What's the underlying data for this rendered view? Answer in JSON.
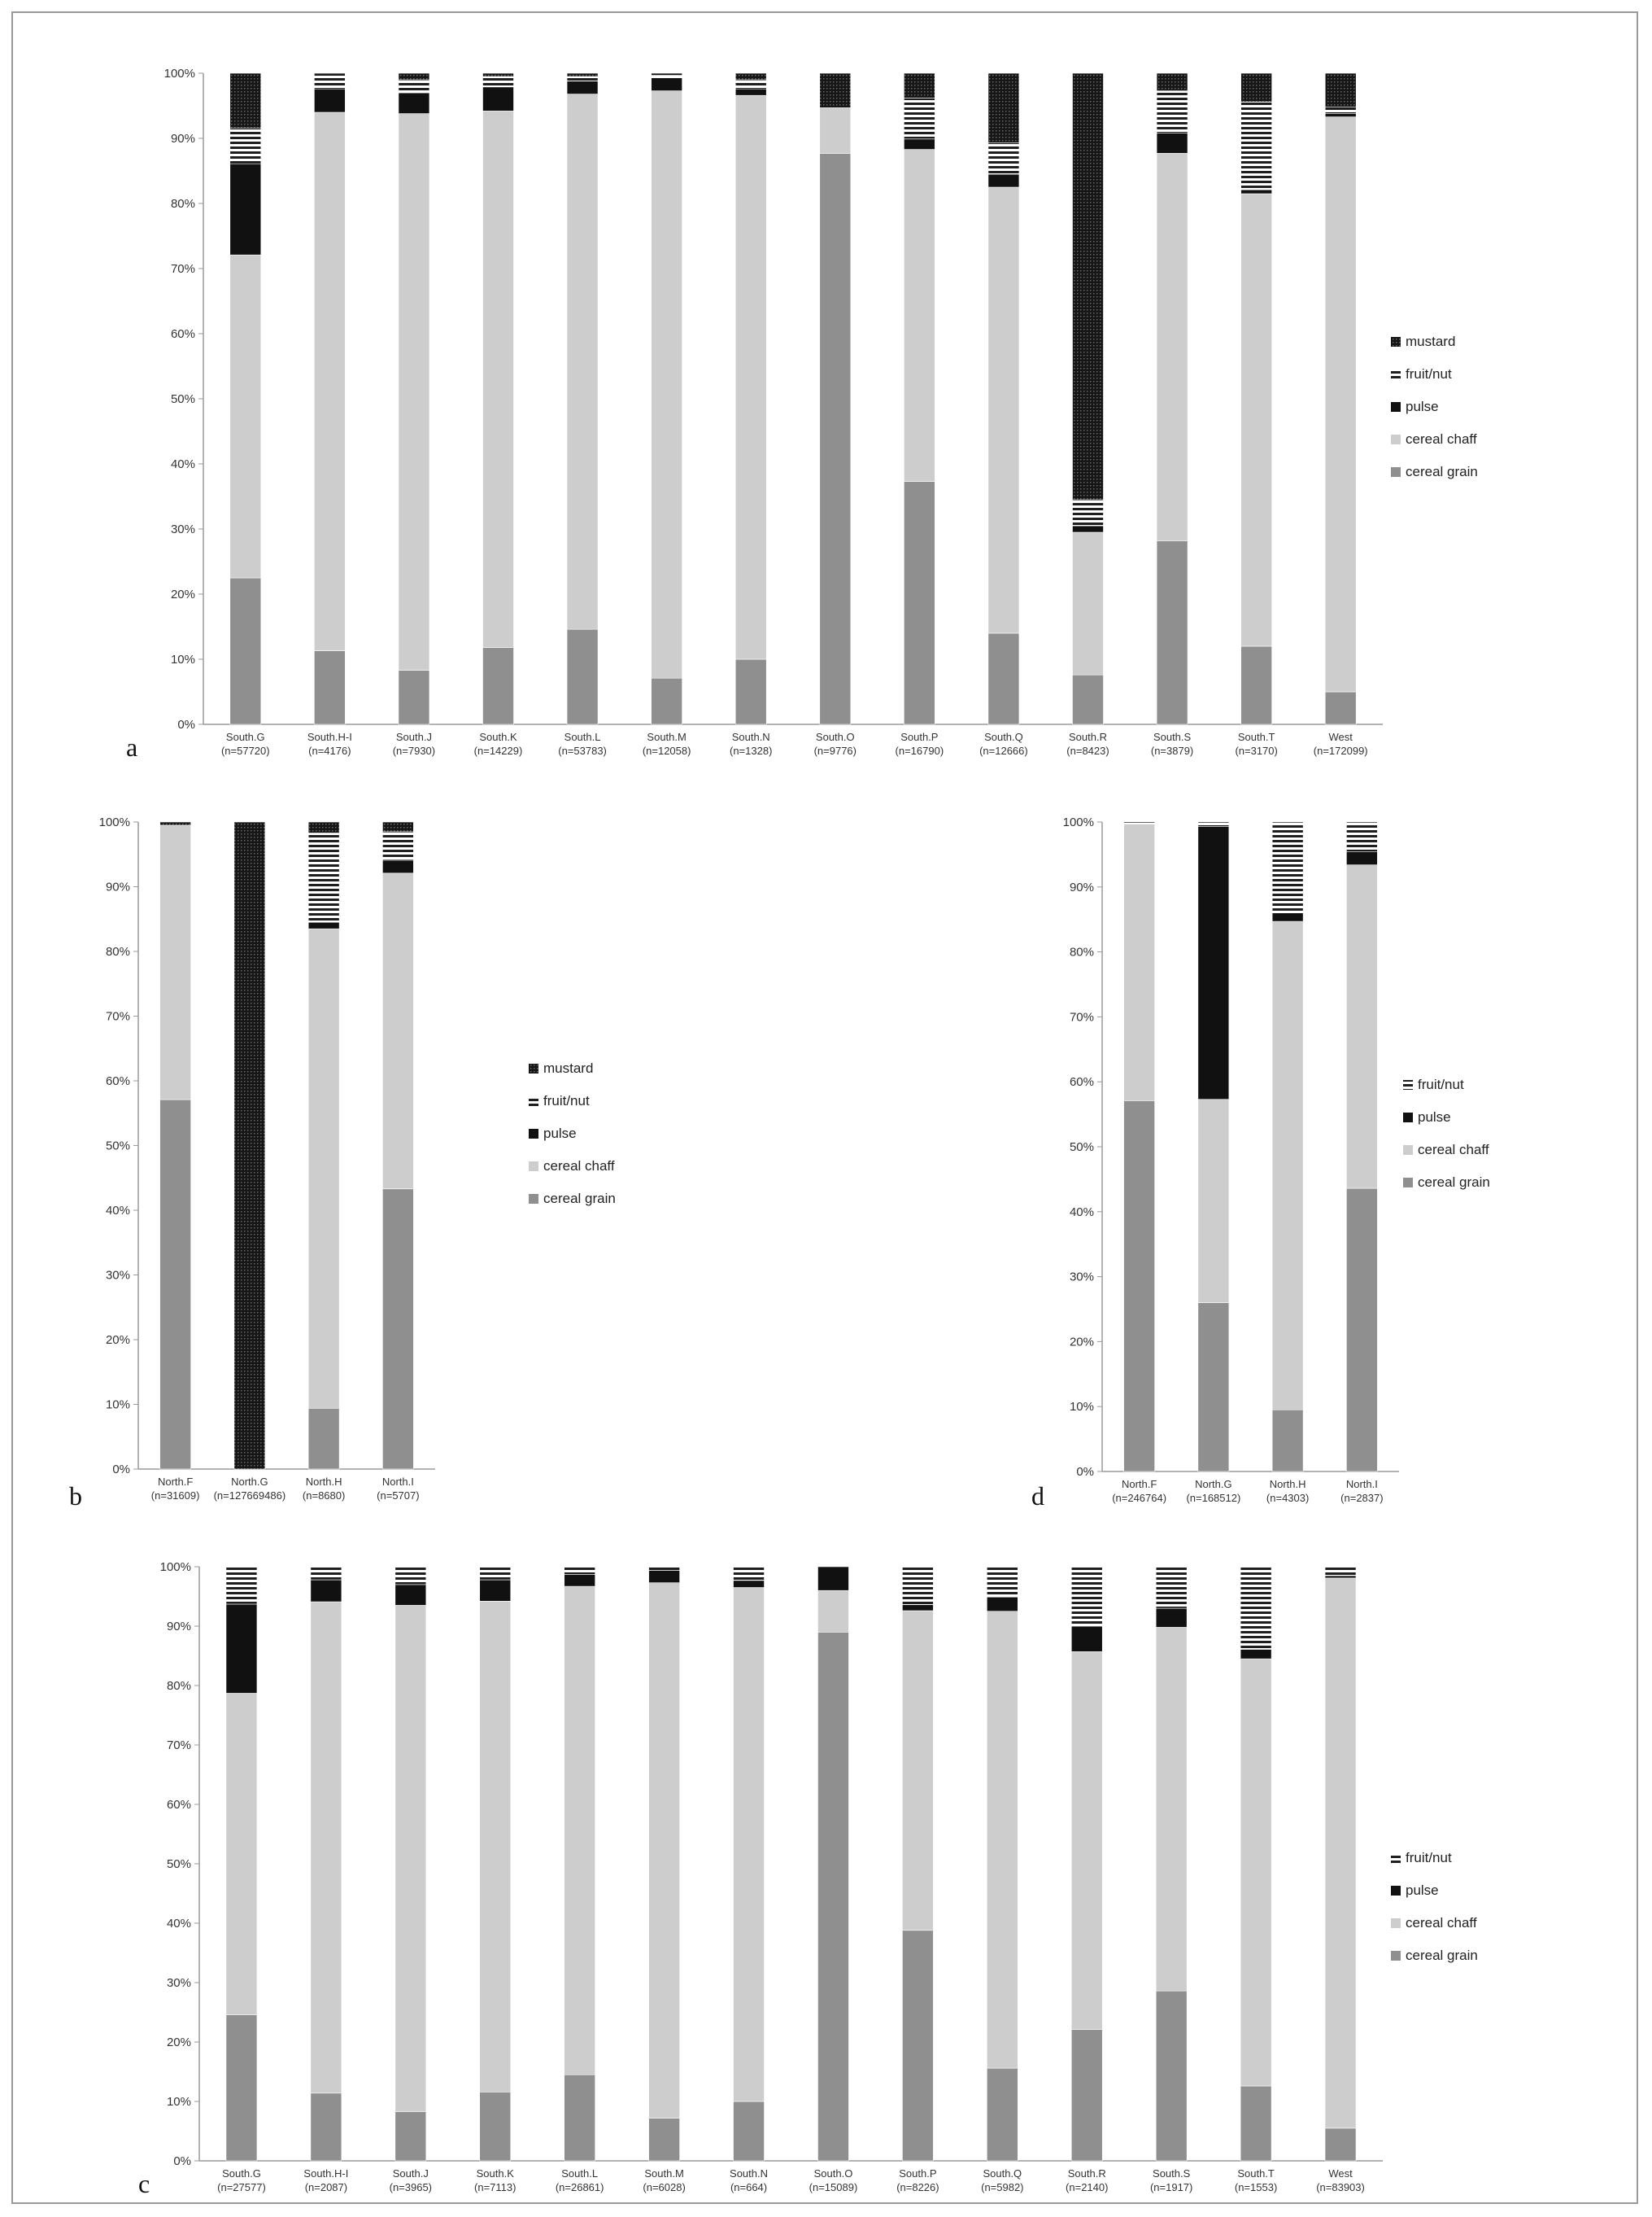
{
  "colors": {
    "cereal grain": "#8f8f8f",
    "cereal chaff": "#cdcdcd",
    "pulse": "#111111",
    "fruit/nut": "#bdbdbd",
    "mustard": "#2a2a2a",
    "axis": "#9a9a9a"
  },
  "panel_letters": {
    "a": "a",
    "b": "b",
    "c": "c",
    "d": "d"
  },
  "chart_data": [
    {
      "panel": "a",
      "type": "bar",
      "stacked": true,
      "percent": true,
      "ylim": [
        0,
        100
      ],
      "yticks": [
        "0%",
        "10%",
        "20%",
        "30%",
        "40%",
        "50%",
        "60%",
        "70%",
        "80%",
        "90%",
        "100%"
      ],
      "categories": [
        "South.G",
        "South.H-I",
        "South.J",
        "South.K",
        "South.L",
        "South.M",
        "South.N",
        "South.O",
        "South.P",
        "South.Q",
        "South.R",
        "South.S",
        "South.T",
        "West"
      ],
      "sample_sizes": [
        "(n=57720)",
        "(n=4176)",
        "(n=7930)",
        "(n=14229)",
        "(n=53783)",
        "(n=12058)",
        "(n=1328)",
        "(n=9776)",
        "(n=16790)",
        "(n=12666)",
        "(n=8423)",
        "(n=3879)",
        "(n=3170)",
        "(n=172099)"
      ],
      "legend": [
        "mustard",
        "fruit/nut",
        "pulse",
        "cereal chaff",
        "cereal grain"
      ],
      "series": [
        {
          "name": "cereal grain",
          "values": [
            22.5,
            11.3,
            8.3,
            11.8,
            14.6,
            7.1,
            10.0,
            87.7,
            37.3,
            14.0,
            7.6,
            28.2,
            12.0,
            5.0
          ]
        },
        {
          "name": "cereal chaff",
          "values": [
            49.6,
            82.7,
            85.5,
            82.4,
            82.2,
            90.2,
            86.6,
            7.0,
            51.0,
            68.5,
            21.9,
            59.5,
            69.5,
            88.3
          ]
        },
        {
          "name": "pulse",
          "values": [
            14.0,
            3.6,
            3.2,
            3.7,
            2.0,
            2.0,
            1.0,
            0.0,
            1.6,
            2.0,
            1.0,
            3.1,
            0.6,
            0.5
          ]
        },
        {
          "name": "fruit/nut",
          "values": [
            5.5,
            2.4,
            2.0,
            1.6,
            0.7,
            0.4,
            1.4,
            0.0,
            6.3,
            4.8,
            4.0,
            6.5,
            13.5,
            1.0
          ]
        },
        {
          "name": "mustard",
          "values": [
            8.4,
            0.0,
            1.0,
            0.5,
            0.5,
            0.3,
            1.0,
            5.3,
            3.8,
            10.7,
            65.5,
            2.7,
            4.4,
            5.2
          ]
        }
      ]
    },
    {
      "panel": "b",
      "type": "bar",
      "stacked": true,
      "percent": true,
      "ylim": [
        0,
        100
      ],
      "yticks": [
        "0%",
        "10%",
        "20%",
        "30%",
        "40%",
        "50%",
        "60%",
        "70%",
        "80%",
        "90%",
        "100%"
      ],
      "categories": [
        "North.F",
        "North.G",
        "North.H",
        "North.I"
      ],
      "sample_sizes": [
        "(n=31609)",
        "(n=127669486)",
        "(n=8680)",
        "(n=5707)"
      ],
      "legend": [
        "mustard",
        "fruit/nut",
        "pulse",
        "cereal chaff",
        "cereal grain"
      ],
      "series": [
        {
          "name": "cereal grain",
          "values": [
            57.1,
            0.0,
            9.4,
            43.3
          ]
        },
        {
          "name": "cereal chaff",
          "values": [
            42.4,
            0.0,
            74.1,
            48.8
          ]
        },
        {
          "name": "pulse",
          "values": [
            0.0,
            0.0,
            1.0,
            2.0
          ]
        },
        {
          "name": "fruit/nut",
          "values": [
            0.0,
            0.0,
            13.8,
            4.4
          ]
        },
        {
          "name": "mustard",
          "values": [
            0.5,
            100.0,
            1.7,
            1.5
          ]
        }
      ]
    },
    {
      "panel": "d",
      "type": "bar",
      "stacked": true,
      "percent": true,
      "ylim": [
        0,
        100
      ],
      "yticks": [
        "0%",
        "10%",
        "20%",
        "30%",
        "40%",
        "50%",
        "60%",
        "70%",
        "80%",
        "90%",
        "100%"
      ],
      "categories": [
        "North.F",
        "North.G",
        "North.H",
        "North.I"
      ],
      "sample_sizes": [
        "(n=246764)",
        "(n=168512)",
        "(n=4303)",
        "(n=2837)"
      ],
      "legend": [
        "fruit/nut",
        "pulse",
        "cereal chaff",
        "cereal grain"
      ],
      "series": [
        {
          "name": "cereal grain",
          "values": [
            57.1,
            26.0,
            9.5,
            43.6
          ]
        },
        {
          "name": "cereal chaff",
          "values": [
            42.6,
            31.3,
            75.2,
            49.8
          ]
        },
        {
          "name": "pulse",
          "values": [
            0.0,
            42.0,
            1.3,
            2.0
          ]
        },
        {
          "name": "fruit/nut",
          "values": [
            0.3,
            0.7,
            14.0,
            4.6
          ]
        }
      ]
    },
    {
      "panel": "c",
      "type": "bar",
      "stacked": true,
      "percent": true,
      "ylim": [
        0,
        100
      ],
      "yticks": [
        "0%",
        "10%",
        "20%",
        "30%",
        "40%",
        "50%",
        "60%",
        "70%",
        "80%",
        "90%",
        "100%"
      ],
      "categories": [
        "South.G",
        "South.H-I",
        "South.J",
        "South.K",
        "South.L",
        "South.M",
        "South.N",
        "South.O",
        "South.P",
        "South.Q",
        "South.R",
        "South.S",
        "South.T",
        "West"
      ],
      "sample_sizes": [
        "(n=27577)",
        "(n=2087)",
        "(n=3965)",
        "(n=7113)",
        "(n=26861)",
        "(n=6028)",
        "(n=664)",
        "(n=15089)",
        "(n=8226)",
        "(n=5982)",
        "(n=2140)",
        "(n=1917)",
        "(n=1553)",
        "(n=83903)"
      ],
      "legend": [
        "fruit/nut",
        "pulse",
        "cereal chaff",
        "cereal grain"
      ],
      "series": [
        {
          "name": "cereal grain",
          "values": [
            24.6,
            11.4,
            8.3,
            11.6,
            14.5,
            7.2,
            10.0,
            89.0,
            38.8,
            15.6,
            22.1,
            28.6,
            12.6,
            5.5
          ]
        },
        {
          "name": "cereal chaff",
          "values": [
            54.1,
            82.7,
            85.2,
            82.6,
            82.2,
            90.1,
            86.5,
            7.0,
            53.8,
            76.9,
            63.6,
            61.2,
            71.9,
            92.6
          ]
        },
        {
          "name": "pulse",
          "values": [
            15.0,
            3.7,
            3.5,
            3.6,
            2.0,
            2.1,
            1.2,
            4.0,
            1.0,
            2.4,
            4.3,
            3.2,
            1.6,
            0.4
          ]
        },
        {
          "name": "fruit/nut",
          "values": [
            6.3,
            2.2,
            3.0,
            2.2,
            1.3,
            0.6,
            2.3,
            0.0,
            6.4,
            5.1,
            10.0,
            7.0,
            13.9,
            1.5
          ]
        }
      ]
    }
  ]
}
